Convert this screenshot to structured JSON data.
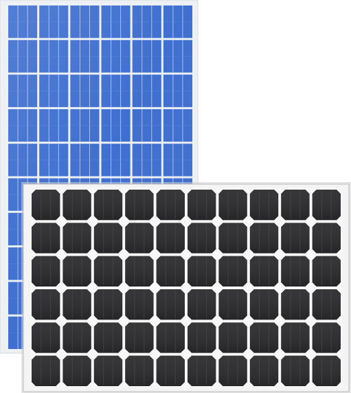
{
  "scene": {
    "subject": "solar-panels",
    "background_color": "#ffffff",
    "panels": [
      {
        "kind": "polycrystalline",
        "cell_columns": 6,
        "cell_rows": 10,
        "frame_color": "#f2f4f6",
        "cell_color": "#3f6fd0",
        "busbar_color": "#c9d6ef"
      },
      {
        "kind": "monocrystalline",
        "cell_columns": 10,
        "cell_rows": 6,
        "frame_color": "#f4f4f4",
        "cell_color": "#2a2a2c",
        "gap_color": "#f7f7f7"
      }
    ]
  }
}
